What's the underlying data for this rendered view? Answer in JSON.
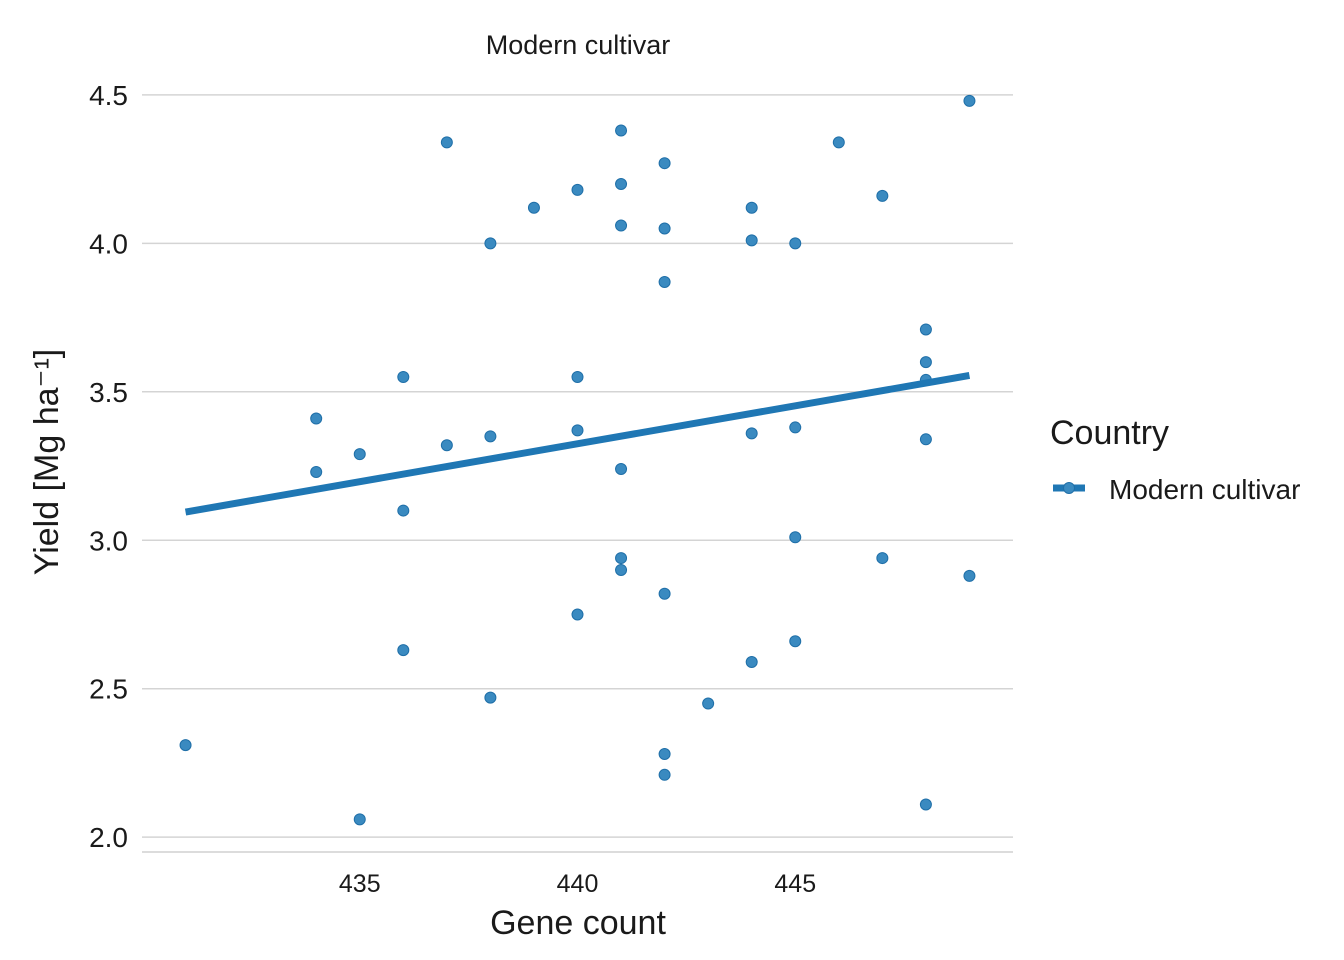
{
  "chart_data": {
    "type": "scatter",
    "title": "Modern cultivar",
    "xlabel": "Gene count",
    "ylabel": "Yield [Mg ha⁻¹]",
    "xlim": [
      430,
      450
    ],
    "ylim": [
      1.95,
      4.53
    ],
    "xticks": [
      435,
      440,
      445
    ],
    "yticks": [
      2.0,
      2.5,
      3.0,
      3.5,
      4.0,
      4.5
    ],
    "ytick_labels": [
      "2.0",
      "2.5",
      "3.0",
      "3.5",
      "4.0",
      "4.5"
    ],
    "grid": "horizontal",
    "legend": {
      "title": "Country",
      "placement": "right",
      "entries": [
        "Modern cultivar"
      ]
    },
    "series": [
      {
        "name": "Modern cultivar",
        "color": "#1f77b4",
        "points": [
          [
            431,
            2.31
          ],
          [
            434,
            3.41
          ],
          [
            434,
            3.23
          ],
          [
            435,
            3.29
          ],
          [
            435,
            2.06
          ],
          [
            436,
            3.55
          ],
          [
            436,
            3.1
          ],
          [
            436,
            2.63
          ],
          [
            437,
            4.34
          ],
          [
            437,
            3.32
          ],
          [
            438,
            4.0
          ],
          [
            438,
            3.35
          ],
          [
            438,
            2.47
          ],
          [
            439,
            4.12
          ],
          [
            440,
            4.18
          ],
          [
            440,
            3.55
          ],
          [
            440,
            3.37
          ],
          [
            440,
            2.75
          ],
          [
            441,
            4.38
          ],
          [
            441,
            4.2
          ],
          [
            441,
            4.06
          ],
          [
            441,
            3.24
          ],
          [
            441,
            2.94
          ],
          [
            441,
            2.9
          ],
          [
            442,
            4.27
          ],
          [
            442,
            4.05
          ],
          [
            442,
            3.87
          ],
          [
            442,
            2.82
          ],
          [
            442,
            2.28
          ],
          [
            442,
            2.21
          ],
          [
            443,
            2.45
          ],
          [
            444,
            4.12
          ],
          [
            444,
            4.01
          ],
          [
            444,
            3.36
          ],
          [
            444,
            2.59
          ],
          [
            445,
            4.0
          ],
          [
            445,
            3.38
          ],
          [
            445,
            3.01
          ],
          [
            445,
            2.66
          ],
          [
            446,
            4.34
          ],
          [
            447,
            4.16
          ],
          [
            447,
            2.94
          ],
          [
            448,
            3.71
          ],
          [
            448,
            3.6
          ],
          [
            448,
            3.54
          ],
          [
            448,
            3.34
          ],
          [
            448,
            2.11
          ],
          [
            449,
            4.48
          ],
          [
            449,
            2.88
          ]
        ],
        "trend_line": {
          "x": [
            431,
            449
          ],
          "y": [
            3.095,
            3.555
          ]
        }
      }
    ]
  }
}
